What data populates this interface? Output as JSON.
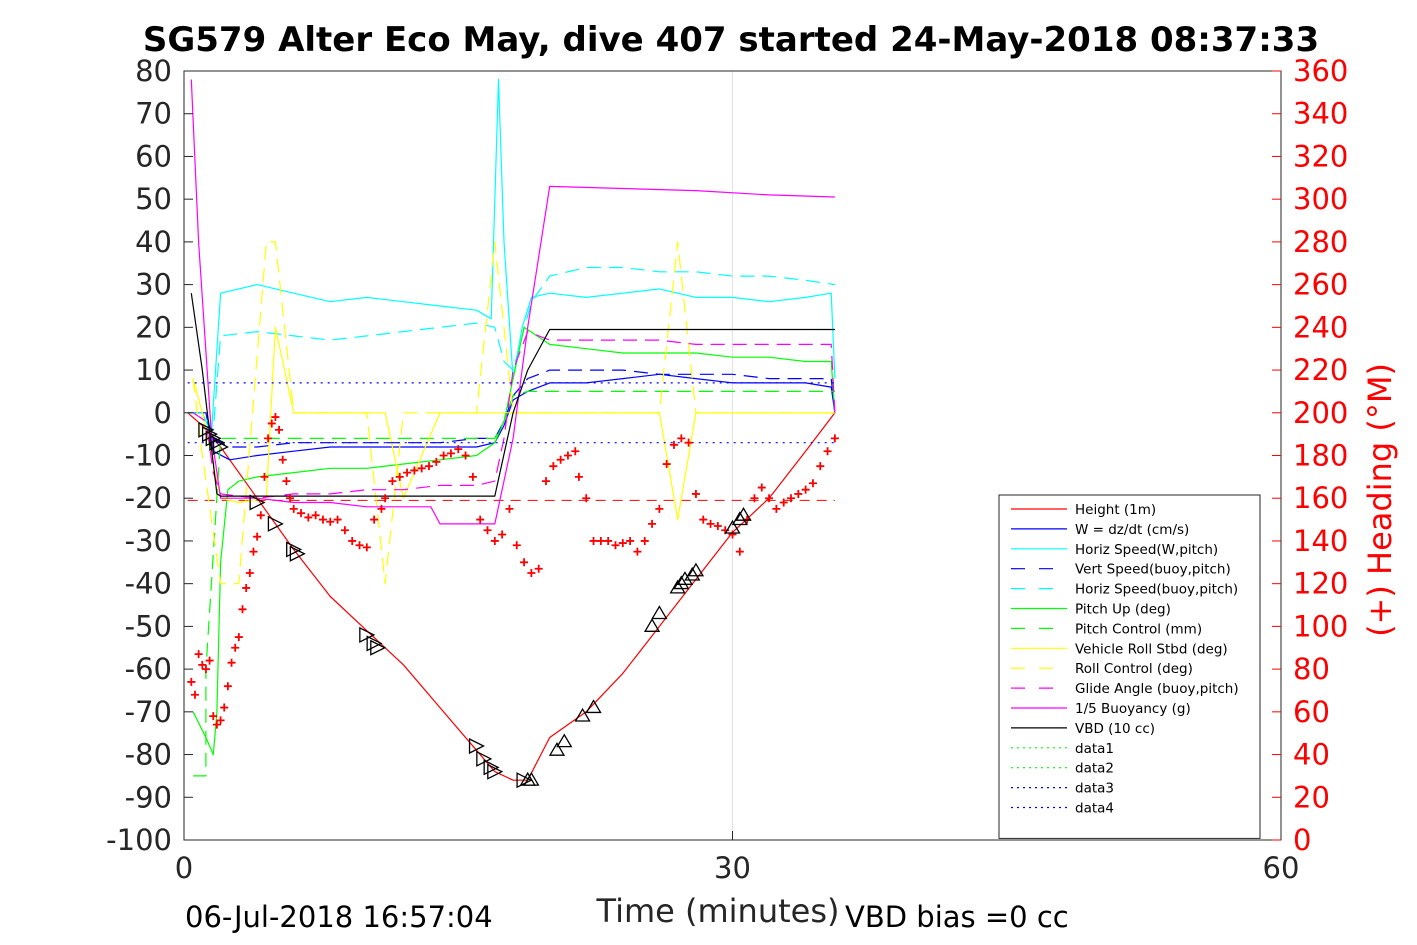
{
  "chart_data": {
    "type": "line",
    "title": "SG579 Alter Eco May, dive 407 started 24-May-2018 08:37:33",
    "xlabel": "Time (minutes)",
    "ylabel_left": "",
    "ylabel_right": "(+) Heading (°M)",
    "xlim": [
      0,
      60
    ],
    "ylim_left": [
      -100,
      80
    ],
    "ylim_right": [
      0,
      360
    ],
    "x_ticks": [
      "0",
      "30",
      "60"
    ],
    "y_ticks_left": [
      "80",
      "70",
      "60",
      "50",
      "40",
      "30",
      "20",
      "10",
      "0",
      "-10",
      "-20",
      "-30",
      "-40",
      "-50",
      "-60",
      "-70",
      "-80",
      "-90",
      "-100"
    ],
    "y_ticks_right": [
      "360",
      "340",
      "320",
      "300",
      "280",
      "260",
      "240",
      "220",
      "200",
      "180",
      "160",
      "140",
      "120",
      "100",
      "80",
      "60",
      "40",
      "20",
      "0"
    ],
    "grid_x_at": [
      30
    ],
    "legend_position": "lower-right",
    "footer_left": "06-Jul-2018 16:57:04",
    "footer_right": "VBD bias =0 cc",
    "heading_color": "#ff0000",
    "series": [
      {
        "name": "Height (1m)",
        "color": "#ff0000",
        "style": "solid",
        "x": [
          0.2,
          1.0,
          2.0,
          4.0,
          6.0,
          8.0,
          10.0,
          12.0,
          14.0,
          16.0,
          17.0,
          18.0,
          18.8,
          20.0,
          22.0,
          24.0,
          26.0,
          28.0,
          30.0,
          32.0,
          34.0,
          35.6
        ],
        "y": [
          0,
          -3,
          -8,
          -20,
          -32,
          -43,
          -51,
          -59,
          -69,
          -79,
          -84,
          -86,
          -86,
          -76,
          -70,
          -61,
          -50,
          -39,
          -28,
          -20,
          -9,
          0
        ]
      },
      {
        "name": "W = dz/dt (cm/s)",
        "color": "#0000ff",
        "style": "solid",
        "x": [
          0.2,
          1.2,
          1.6,
          2.5,
          4.0,
          6.0,
          8.0,
          10.0,
          12.0,
          14.0,
          16.0,
          17.0,
          17.5,
          18.0,
          18.8,
          20.0,
          22.0,
          24.0,
          26.0,
          28.0,
          30.0,
          32.0,
          34.0,
          35.4,
          35.6
        ],
        "y": [
          0,
          0,
          -9,
          -11,
          -10,
          -9,
          -8,
          -8,
          -8,
          -8,
          -8,
          -7,
          -3,
          3,
          5,
          7,
          7,
          8,
          9,
          8,
          7,
          7,
          7,
          6,
          0
        ]
      },
      {
        "name": "Horiz Speed(W,pitch)",
        "color": "#00ffff",
        "style": "solid",
        "x": [
          0.2,
          1.0,
          1.5,
          2.0,
          4.0,
          6.0,
          8.0,
          10.0,
          12.0,
          14.0,
          16.0,
          16.8,
          17.2,
          17.5,
          18.0,
          18.5,
          19.0,
          20.0,
          22.0,
          24.0,
          26.0,
          28.0,
          30.0,
          32.0,
          34.0,
          35.4,
          35.6
        ],
        "y": [
          0,
          0,
          -5,
          28,
          30,
          28,
          26,
          27,
          26,
          25,
          24,
          22,
          78,
          40,
          8,
          20,
          27,
          28,
          27,
          28,
          29,
          27,
          27,
          26,
          27,
          28,
          8
        ]
      },
      {
        "name": "Vert Speed(buoy,pitch)",
        "color": "#0000ff",
        "style": "dashed",
        "x": [
          0.2,
          1.2,
          1.6,
          2.5,
          4.0,
          6.0,
          8.0,
          10.0,
          12.0,
          14.0,
          16.0,
          17.0,
          17.5,
          18.0,
          18.8,
          20.0,
          22.0,
          24.0,
          26.0,
          28.0,
          30.0,
          32.0,
          34.0,
          35.4,
          35.6
        ],
        "y": [
          0,
          0,
          -6,
          -8,
          -8,
          -7,
          -7,
          -7,
          -7,
          -7,
          -6,
          -6,
          -2,
          4,
          8,
          10,
          10,
          10,
          9,
          9,
          9,
          8,
          8,
          8,
          0
        ]
      },
      {
        "name": "Horiz Speed(buoy,pitch)",
        "color": "#00ffff",
        "style": "dashed",
        "x": [
          0.2,
          1.0,
          1.6,
          2.0,
          4.0,
          6.0,
          8.0,
          10.0,
          12.0,
          14.0,
          16.0,
          17.0,
          17.5,
          18.0,
          19.0,
          20.0,
          22.0,
          24.0,
          26.0,
          28.0,
          30.0,
          32.0,
          34.0,
          35.6
        ],
        "y": [
          0,
          0,
          -4,
          18,
          19,
          18,
          17,
          18,
          19,
          20,
          21,
          20,
          12,
          10,
          26,
          32,
          34,
          34,
          33,
          33,
          32,
          32,
          31,
          30
        ]
      },
      {
        "name": "Pitch Up (deg)",
        "color": "#00ff00",
        "style": "solid",
        "x": [
          0.5,
          1.2,
          1.6,
          1.8,
          2.0,
          2.4,
          3.0,
          4.0,
          6.0,
          8.0,
          10.0,
          12.0,
          14.0,
          16.0,
          17.0,
          17.5,
          18.0,
          18.6,
          20.0,
          22.0,
          24.0,
          26.0,
          28.0,
          30.0,
          32.0,
          34.0,
          35.4,
          35.6
        ],
        "y": [
          -70,
          -76,
          -80,
          -70,
          -35,
          -18,
          -16,
          -15,
          -14,
          -13,
          -13,
          -12,
          -11,
          -10,
          -7,
          -2,
          8,
          20,
          16,
          15,
          14,
          14,
          14,
          13,
          13,
          12,
          12,
          0
        ]
      },
      {
        "name": "Pitch Control (mm)",
        "color": "#00ff00",
        "style": "dashed",
        "x": [
          0.5,
          1.2,
          1.2,
          1.5,
          2.0,
          3.0,
          6.0,
          10.0,
          14.0,
          16.0,
          17.0,
          17.5,
          18.0,
          18.8,
          20.0,
          24.0,
          28.0,
          32.0,
          35.6
        ],
        "y": [
          -85,
          -85,
          -60,
          -40,
          -6,
          -6,
          -6,
          -6,
          -6,
          -6,
          -6,
          -2,
          4,
          5,
          5,
          5,
          5,
          5,
          5
        ]
      },
      {
        "name": "Vehicle Roll Stbd (deg)",
        "color": "#ffff00",
        "style": "solid",
        "x": [
          0.5,
          1.0,
          2.0,
          3.0,
          4.5,
          5.0,
          6.0,
          8.0,
          10.0,
          11.0,
          12.0,
          14.0,
          15.0,
          16.0,
          17.0,
          18.0,
          20.0,
          22.0,
          24.0,
          26.0,
          27.0,
          28.0,
          30.0,
          32.0,
          34.0,
          35.6
        ],
        "y": [
          8,
          0,
          -20,
          -21,
          -20,
          20,
          0,
          0,
          0,
          0,
          -20,
          0,
          0,
          0,
          0,
          0,
          0,
          0,
          0,
          0,
          -25,
          0,
          0,
          0,
          0,
          0
        ]
      },
      {
        "name": "Roll Control (deg)",
        "color": "#ffff00",
        "style": "dashed",
        "x": [
          0.5,
          1.0,
          2.0,
          3.0,
          4.5,
          5.0,
          6.0,
          8.0,
          10.0,
          11.0,
          12.0,
          14.0,
          16.0,
          17.0,
          18.0,
          20.0,
          22.0,
          24.0,
          26.0,
          27.0,
          28.0,
          30.0,
          32.0,
          34.0,
          35.6
        ],
        "y": [
          8,
          -10,
          -40,
          -40,
          40,
          40,
          0,
          0,
          0,
          -40,
          0,
          0,
          0,
          40,
          0,
          0,
          0,
          0,
          0,
          40,
          0,
          0,
          0,
          0,
          0
        ]
      },
      {
        "name": "Glide Angle (buoy,pitch)",
        "color": "#ff00ff",
        "style": "dashed",
        "x": [
          0.5,
          1.2,
          1.6,
          2.0,
          4.0,
          6.0,
          8.0,
          10.0,
          12.0,
          14.0,
          16.0,
          17.0,
          17.5,
          18.0,
          18.8,
          20.0,
          22.0,
          24.0,
          26.0,
          28.0,
          30.0,
          32.0,
          34.0,
          35.4,
          35.6
        ],
        "y": [
          0,
          -2,
          -14,
          -19,
          -20,
          -19,
          -19,
          -18,
          -18,
          -17,
          -17,
          -16,
          -6,
          10,
          19,
          17,
          17,
          17,
          17,
          16,
          16,
          16,
          16,
          16,
          0
        ]
      },
      {
        "name": "1/5 Buoyancy (g)",
        "color": "#ff00ff",
        "style": "solid",
        "x": [
          0.4,
          0.8,
          1.5,
          2.0,
          4.0,
          6.0,
          8.0,
          10.0,
          12.0,
          13.5,
          14.0,
          16.0,
          17.0,
          18.0,
          18.8,
          20.0,
          24.0,
          28.0,
          32.0,
          35.6
        ],
        "y": [
          78,
          40,
          -5,
          -20,
          -20,
          -21,
          -21,
          -22,
          -22,
          -22,
          -26,
          -26,
          -26,
          -6,
          20,
          53,
          52.5,
          52,
          51,
          50.5
        ]
      },
      {
        "name": "VBD (10 cc)",
        "color": "#000000",
        "style": "solid",
        "x": [
          0.4,
          1.0,
          1.8,
          2.0,
          4.0,
          8.0,
          12.0,
          16.0,
          17.0,
          18.0,
          18.8,
          20.0,
          24.0,
          28.0,
          32.0,
          35.6
        ],
        "y": [
          28,
          10,
          -19,
          -19.5,
          -19.5,
          -19.5,
          -19.5,
          -19.5,
          -19.5,
          0,
          10,
          19.5,
          19.5,
          19.5,
          19.5,
          19.5
        ]
      },
      {
        "name": "data1",
        "color": "#00ff00",
        "style": "dotted",
        "x": [],
        "y": []
      },
      {
        "name": "data2",
        "color": "#00ff00",
        "style": "dotted",
        "x": [],
        "y": []
      },
      {
        "name": "data3",
        "color": "#0000ff",
        "style": "dotted",
        "x": [
          0.2,
          35.6
        ],
        "y": [
          7,
          7
        ]
      },
      {
        "name": "data4",
        "color": "#0000ff",
        "style": "dotted",
        "x": [
          0.2,
          35.6
        ],
        "y": [
          -7,
          -7
        ]
      }
    ],
    "reference_line": {
      "color": "#ff0000",
      "style": "dashed",
      "x": [
        0.2,
        35.6
      ],
      "y": [
        -20.5,
        -20.5
      ]
    },
    "heading_points": {
      "x": [
        0.4,
        0.6,
        0.8,
        1.0,
        1.2,
        1.4,
        1.6,
        1.8,
        2.0,
        2.2,
        2.4,
        2.6,
        2.8,
        3.0,
        3.2,
        3.4,
        3.6,
        3.8,
        4.0,
        4.2,
        4.4,
        4.6,
        4.8,
        5.0,
        5.2,
        5.4,
        5.6,
        5.8,
        6.0,
        6.4,
        6.8,
        7.2,
        7.6,
        8.0,
        8.4,
        8.8,
        9.2,
        9.6,
        10.0,
        10.4,
        10.8,
        11.0,
        11.4,
        11.8,
        12.2,
        12.6,
        13.0,
        13.4,
        13.8,
        14.2,
        14.6,
        15.0,
        15.4,
        15.8,
        16.2,
        16.6,
        17.0,
        17.4,
        17.8,
        18.2,
        18.6,
        19.0,
        19.4,
        19.8,
        20.2,
        20.6,
        21.0,
        21.4,
        21.6,
        22.0,
        22.4,
        22.8,
        23.2,
        23.6,
        24.0,
        24.4,
        24.8,
        25.2,
        25.6,
        26.0,
        26.4,
        26.8,
        27.2,
        27.6,
        28.0,
        28.4,
        28.8,
        29.2,
        29.6,
        30.0,
        30.4,
        30.8,
        31.2,
        31.6,
        32.0,
        32.4,
        32.8,
        33.2,
        33.6,
        34.0,
        34.4,
        34.8,
        35.2,
        35.6
      ],
      "y": [
        74,
        68,
        87,
        82,
        80,
        84,
        58,
        54,
        56,
        62,
        72,
        83,
        90,
        95,
        108,
        118,
        125,
        135,
        142,
        152,
        170,
        188,
        195,
        198,
        192,
        178,
        168,
        160,
        155,
        153,
        151,
        152,
        150,
        149,
        150,
        145,
        140,
        138,
        137,
        150,
        155,
        160,
        168,
        170,
        172,
        173,
        174,
        175,
        177,
        180,
        181,
        183,
        180,
        170,
        150,
        145,
        140,
        143,
        155,
        138,
        130,
        125,
        127,
        168,
        175,
        178,
        180,
        182,
        170,
        160,
        140,
        140,
        140,
        138,
        139,
        140,
        135,
        140,
        148,
        155,
        176,
        185,
        188,
        186,
        162,
        150,
        148,
        147,
        145,
        143,
        135,
        150,
        160,
        165,
        160,
        155,
        158,
        160,
        162,
        164,
        167,
        175,
        182,
        188
      ]
    },
    "markers": {
      "x": [
        1.2,
        1.4,
        1.6,
        1.8,
        2.0,
        4.0,
        5.0,
        6.0,
        6.2,
        10.0,
        10.4,
        10.6,
        16.0,
        16.4,
        16.8,
        17.0,
        18.6,
        18.8,
        19.0,
        20.4,
        20.8,
        21.8,
        22.4,
        25.6,
        26.0,
        27.0,
        27.2,
        27.4,
        27.8,
        28.0,
        30.0,
        30.4,
        30.6
      ],
      "y": [
        -4,
        -5,
        -6,
        -7,
        -8,
        -21,
        -26,
        -32,
        -33,
        -52,
        -54,
        -55,
        -78,
        -81,
        -83,
        -84,
        -86,
        -86,
        -86,
        -79,
        -77,
        -71,
        -69,
        -50,
        -47,
        -41,
        -40,
        -39,
        -38,
        -37,
        -27,
        -25,
        -24
      ]
    }
  }
}
